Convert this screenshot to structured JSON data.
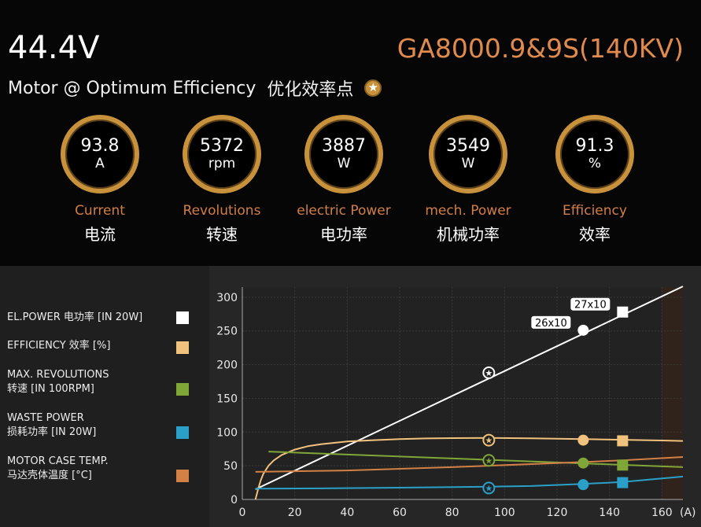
{
  "header": {
    "voltage": "44.4V",
    "model": "GA8000.9&9S(140KV)",
    "subtitle": "Motor @ Optimum Efficiency",
    "subtitle_cn": "优化效率点",
    "star_glyph": "★"
  },
  "gauges": [
    {
      "value": "93.8",
      "unit": "A",
      "label": "Current",
      "label_cn": "电流"
    },
    {
      "value": "5372",
      "unit": "rpm",
      "label": "Revolutions",
      "label_cn": "转速"
    },
    {
      "value": "3887",
      "unit": "W",
      "label": "electric Power",
      "label_cn": "电功率"
    },
    {
      "value": "3549",
      "unit": "W",
      "label": "mech. Power",
      "label_cn": "机械功率"
    },
    {
      "value": "91.3",
      "unit": "%",
      "label": "Efficiency",
      "label_cn": "效率"
    }
  ],
  "legend": [
    {
      "line1": "EL.POWER 电功率 [IN 20W]",
      "line2": "",
      "color": "#ffffff"
    },
    {
      "line1": "EFFICIENCY 效率 [%]",
      "line2": "",
      "color": "#f1c27d"
    },
    {
      "line1": "MAX. REVOLUTIONS",
      "line2": "转速 [IN 100RPM]",
      "color": "#7fa637"
    },
    {
      "line1": "WASTE POWER",
      "line2": "损耗功率 [IN 20W]",
      "color": "#2aa0c8"
    },
    {
      "line1": "MOTOR CASE TEMP.",
      "line2": "马达壳体温度 [°C]",
      "color": "#d28045"
    }
  ],
  "chart_data": {
    "type": "line",
    "xlabel": "(A)",
    "ylabel": "",
    "xlim": [
      0,
      168
    ],
    "ylim": [
      0,
      315
    ],
    "x_ticks": [
      0,
      20,
      40,
      60,
      80,
      100,
      120,
      140,
      160
    ],
    "y_ticks": [
      0,
      50,
      100,
      150,
      200,
      250,
      300
    ],
    "grid": true,
    "series": [
      {
        "name": "EL.POWER 电功率 [IN 20W]",
        "color": "#ffffff",
        "x": [
          5,
          168
        ],
        "y": [
          15,
          316
        ]
      },
      {
        "name": "EFFICIENCY 效率 [%]",
        "color": "#f1c27d",
        "x": [
          5,
          6,
          7,
          8,
          10,
          12,
          15,
          20,
          25,
          30,
          40,
          50,
          60,
          70,
          80,
          94,
          110,
          130,
          145,
          160,
          168
        ],
        "y": [
          0,
          15,
          28,
          38,
          50,
          58,
          66,
          74,
          79,
          82,
          86,
          88,
          89.5,
          90.5,
          91,
          91.3,
          90.8,
          89.5,
          88.5,
          87.5,
          86.8
        ]
      },
      {
        "name": "MAX. REVOLUTIONS 转速 [IN 100RPM]",
        "color": "#7fa637",
        "x": [
          10,
          168
        ],
        "y": [
          71,
          48
        ]
      },
      {
        "name": "WASTE POWER 损耗功率 [IN 20W]",
        "color": "#2aa0c8",
        "x": [
          5,
          30,
          60,
          94,
          110,
          130,
          145,
          168
        ],
        "y": [
          16,
          16.5,
          17.5,
          19,
          20,
          23,
          26,
          34
        ]
      },
      {
        "name": "MOTOR CASE TEMP. 马达壳体温度 [°C]",
        "color": "#d28045",
        "x": [
          5,
          40,
          80,
          94,
          120,
          145,
          168
        ],
        "y": [
          41,
          43,
          48,
          50,
          54,
          58,
          63
        ]
      }
    ],
    "markers": [
      {
        "type": "star",
        "x": 94,
        "ys": [
          188,
          88,
          58,
          17
        ],
        "colors": [
          "#ffffff",
          "#f1c27d",
          "#7fa637",
          "#2aa0c8"
        ]
      },
      {
        "type": "circle",
        "x": 130,
        "ys": [
          251,
          88,
          54,
          22
        ],
        "colors": [
          "#ffffff",
          "#f1c27d",
          "#7fa637",
          "#2aa0c8"
        ],
        "label": "26x10"
      },
      {
        "type": "square",
        "x": 145,
        "ys": [
          278,
          87,
          51,
          25
        ],
        "colors": [
          "#ffffff",
          "#f1c27d",
          "#7fa637",
          "#2aa0c8"
        ],
        "label": "27x10"
      }
    ]
  }
}
